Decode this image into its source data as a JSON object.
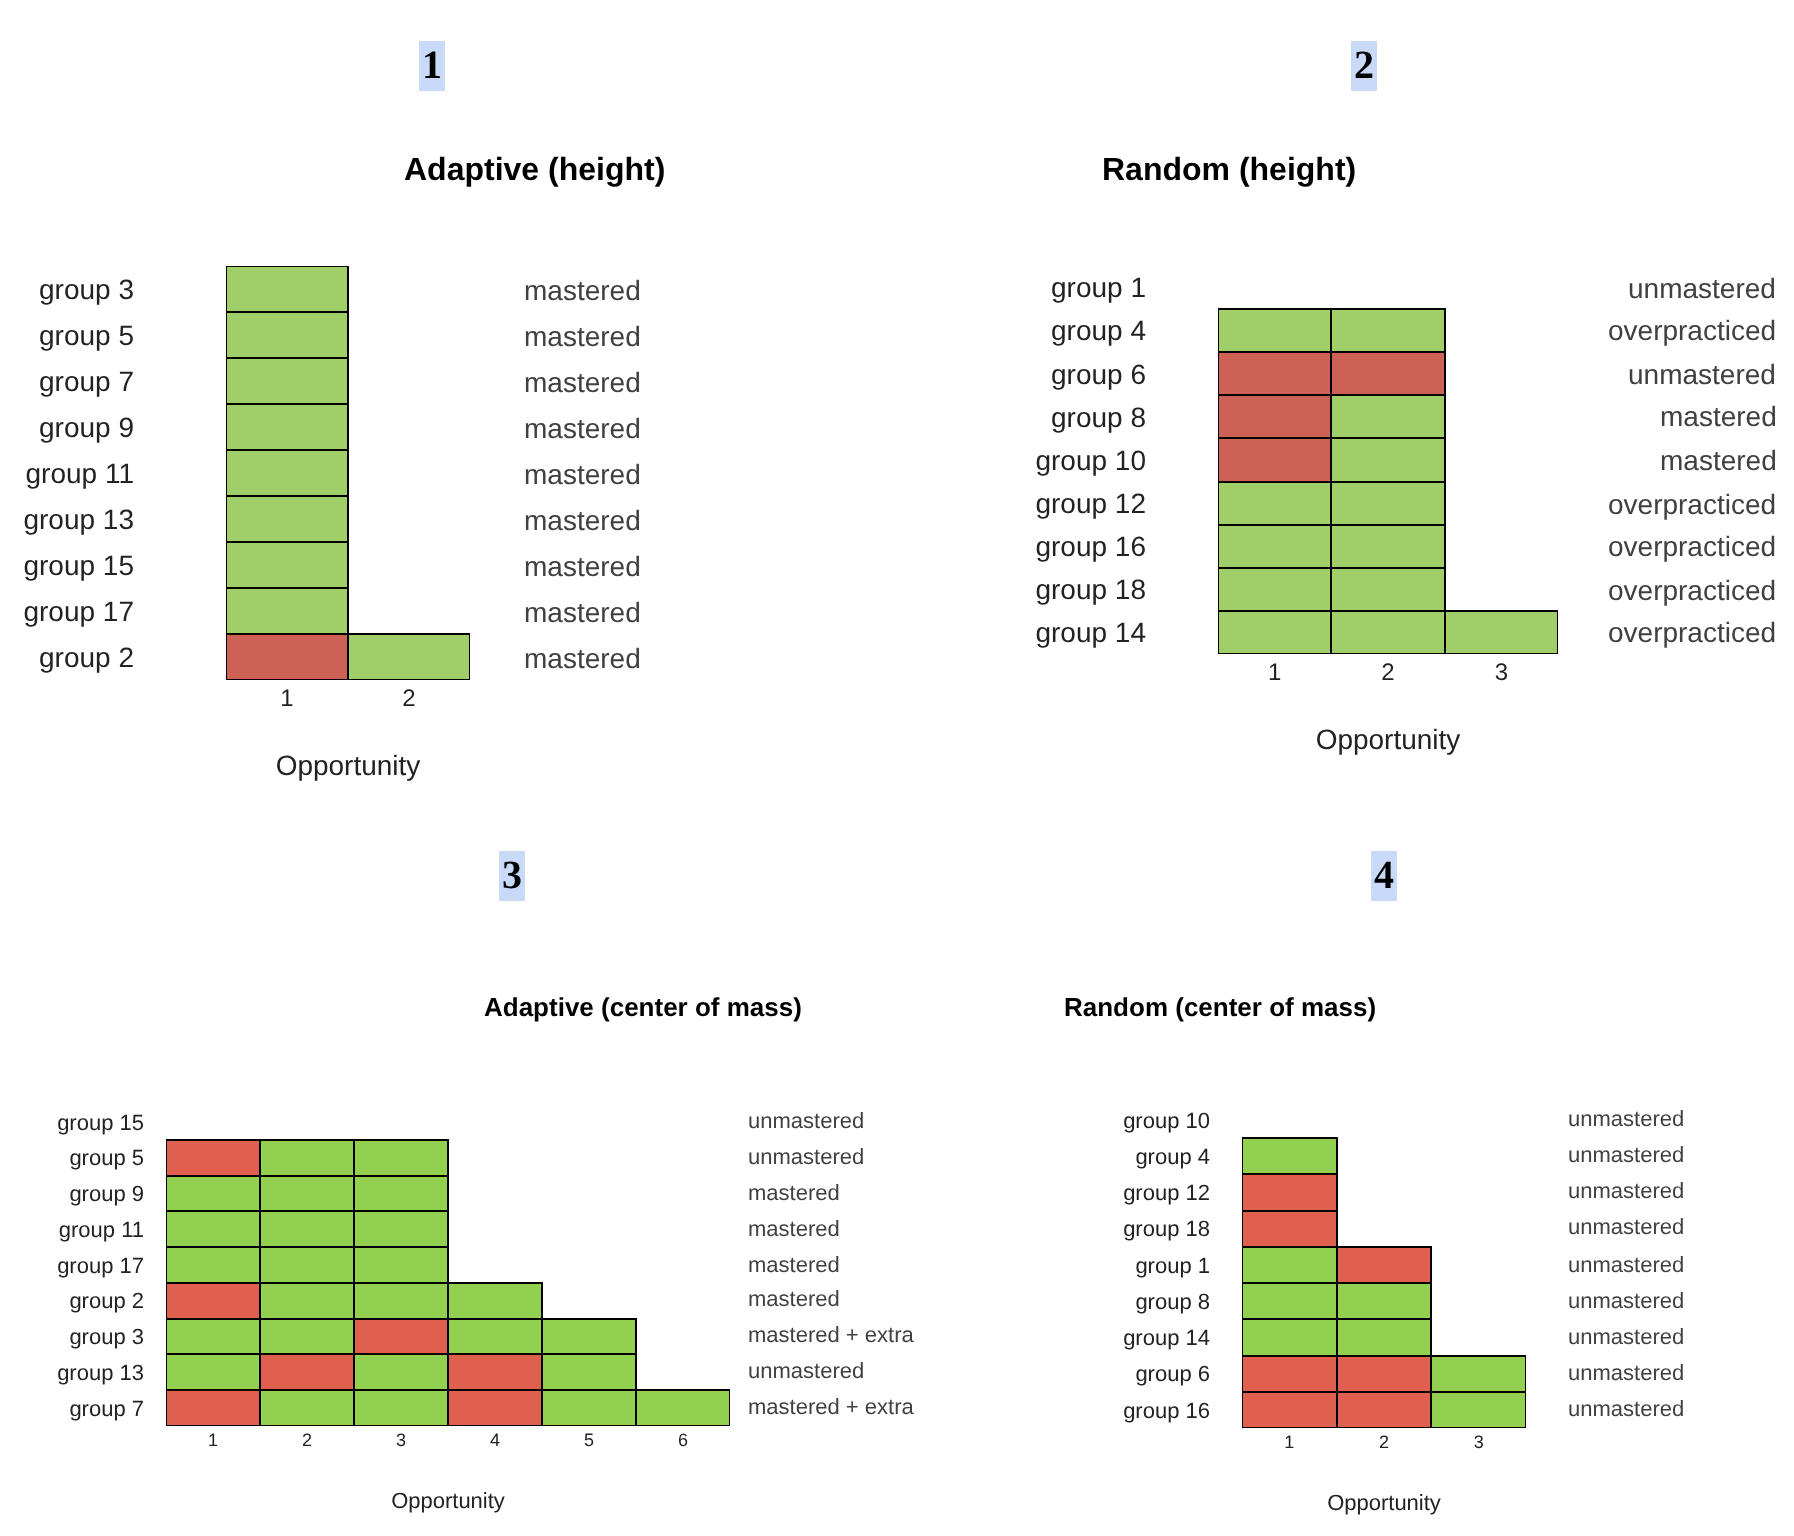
{
  "chart_data": [
    {
      "type": "bar",
      "orientation": "horizontal",
      "stacked": true,
      "annotations": [
        "1"
      ],
      "title": "Adaptive (height)",
      "xlabel": "Opportunity",
      "categories": [
        "group 3",
        "group 5",
        "group 7",
        "group 9",
        "group 11",
        "group 13",
        "group 15",
        "group 17",
        "group 2"
      ],
      "y2_categories": [
        "mastered",
        "mastered",
        "mastered",
        "mastered",
        "mastered",
        "mastered",
        "mastered",
        "mastered",
        "mastered"
      ],
      "xlim": [
        0,
        2
      ],
      "xticks": [
        {
          "value": 0.5,
          "label": "1"
        },
        {
          "value": 1.5,
          "label": "2"
        }
      ],
      "series": [
        {
          "values": [
            1,
            1,
            1,
            1,
            1,
            1,
            1,
            1,
            1
          ],
          "colors": [
            "#a0cf6a",
            "#a0cf6a",
            "#a0cf6a",
            "#a0cf6a",
            "#a0cf6a",
            "#a0cf6a",
            "#a0cf6a",
            "#a0cf6a",
            "#cd6155"
          ]
        },
        {
          "values": [
            null,
            null,
            null,
            null,
            null,
            null,
            null,
            null,
            1
          ],
          "colors": [
            null,
            null,
            null,
            null,
            null,
            null,
            null,
            null,
            "#a0cf6a"
          ]
        }
      ]
    },
    {
      "type": "bar",
      "orientation": "horizontal",
      "stacked": true,
      "annotations": [
        "2"
      ],
      "title": "Random (height)",
      "xlabel": "Opportunity",
      "categories": [
        "group 1",
        "group 4",
        "group 6",
        "group 8",
        "group 10",
        "group 12",
        "group 16",
        "group 18",
        "group 14"
      ],
      "y2_categories": [
        "unmastered",
        "overpracticed",
        "unmastered",
        "mastered",
        "mastered",
        "overpracticed",
        "overpracticed",
        "overpracticed",
        "overpracticed"
      ],
      "xlim": [
        0,
        3
      ],
      "xticks": [
        {
          "value": 0.5,
          "label": "1"
        },
        {
          "value": 1.5,
          "label": "2"
        },
        {
          "value": 2.5,
          "label": "3"
        }
      ],
      "series": [
        {
          "values": [
            null,
            1,
            1,
            1,
            1,
            1,
            1,
            1,
            1
          ],
          "colors": [
            null,
            "#a0cf6a",
            "#cd6155",
            "#cd6155",
            "#cd6155",
            "#a0cf6a",
            "#a0cf6a",
            "#a0cf6a",
            "#a0cf6a"
          ]
        },
        {
          "values": [
            null,
            1,
            1,
            1,
            1,
            1,
            1,
            1,
            1
          ],
          "colors": [
            null,
            "#a0cf6a",
            "#cd6155",
            "#a0cf6a",
            "#a0cf6a",
            "#a0cf6a",
            "#a0cf6a",
            "#a0cf6a",
            "#a0cf6a"
          ]
        },
        {
          "values": [
            null,
            null,
            null,
            null,
            null,
            null,
            null,
            null,
            1
          ],
          "colors": [
            null,
            null,
            null,
            null,
            null,
            null,
            null,
            null,
            "#a0cf6a"
          ]
        }
      ]
    },
    {
      "type": "bar",
      "orientation": "horizontal",
      "stacked": true,
      "annotations": [
        "3"
      ],
      "title": "Adaptive (center of mass)",
      "xlabel": "Opportunity",
      "categories": [
        "group 15",
        "group 5",
        "group 9",
        "group 11",
        "group 17",
        "group 2",
        "group 3",
        "group 13",
        "group 7"
      ],
      "y2_categories": [
        "unmastered",
        "unmastered",
        "mastered",
        "mastered",
        "mastered",
        "mastered",
        "mastered + extra",
        "unmastered",
        "mastered + extra"
      ],
      "xlim": [
        0,
        6
      ],
      "xticks": [
        {
          "value": 0.5,
          "label": "1"
        },
        {
          "value": 1.5,
          "label": "2"
        },
        {
          "value": 2.5,
          "label": "3"
        },
        {
          "value": 3.5,
          "label": "4"
        },
        {
          "value": 4.5,
          "label": "5"
        },
        {
          "value": 5.5,
          "label": "6"
        }
      ],
      "series": [
        {
          "values": [
            null,
            1,
            1,
            1,
            1,
            1,
            1,
            1,
            1
          ],
          "colors": [
            null,
            "#e06050",
            "#92d050",
            "#92d050",
            "#92d050",
            "#e06050",
            "#92d050",
            "#92d050",
            "#e06050"
          ]
        },
        {
          "values": [
            null,
            1,
            1,
            1,
            1,
            1,
            1,
            1,
            1
          ],
          "colors": [
            null,
            "#92d050",
            "#92d050",
            "#92d050",
            "#92d050",
            "#92d050",
            "#92d050",
            "#e06050",
            "#92d050"
          ]
        },
        {
          "values": [
            null,
            1,
            1,
            1,
            1,
            1,
            1,
            1,
            1
          ],
          "colors": [
            null,
            "#92d050",
            "#92d050",
            "#92d050",
            "#92d050",
            "#92d050",
            "#e06050",
            "#92d050",
            "#92d050"
          ]
        },
        {
          "values": [
            null,
            null,
            null,
            null,
            null,
            1,
            1,
            1,
            1
          ],
          "colors": [
            null,
            null,
            null,
            null,
            null,
            "#92d050",
            "#92d050",
            "#e06050",
            "#e06050"
          ]
        },
        {
          "values": [
            null,
            null,
            null,
            null,
            null,
            null,
            1,
            1,
            1
          ],
          "colors": [
            null,
            null,
            null,
            null,
            null,
            null,
            "#92d050",
            "#92d050",
            "#92d050"
          ]
        },
        {
          "values": [
            null,
            null,
            null,
            null,
            null,
            null,
            null,
            null,
            1
          ],
          "colors": [
            null,
            null,
            null,
            null,
            null,
            null,
            null,
            null,
            "#92d050"
          ]
        }
      ]
    },
    {
      "type": "bar",
      "orientation": "horizontal",
      "stacked": true,
      "annotations": [
        "4"
      ],
      "title": "Random (center of mass)",
      "xlabel": "Opportunity",
      "categories": [
        "group 10",
        "group 4",
        "group 12",
        "group 18",
        "group 1",
        "group 8",
        "group 14",
        "group 6",
        "group 16"
      ],
      "y2_categories": [
        "unmastered",
        "unmastered",
        "unmastered",
        "unmastered",
        "unmastered",
        "unmastered",
        "unmastered",
        "unmastered",
        "unmastered"
      ],
      "xlim": [
        0,
        3
      ],
      "xticks": [
        {
          "value": 0.5,
          "label": "1"
        },
        {
          "value": 1.5,
          "label": "2"
        },
        {
          "value": 2.5,
          "label": "3"
        }
      ],
      "series": [
        {
          "values": [
            null,
            1,
            1,
            1,
            1,
            1,
            1,
            1,
            1
          ],
          "colors": [
            null,
            "#92d050",
            "#e06050",
            "#e06050",
            "#92d050",
            "#92d050",
            "#92d050",
            "#e06050",
            "#e06050"
          ]
        },
        {
          "values": [
            null,
            null,
            null,
            null,
            1,
            1,
            1,
            1,
            1
          ],
          "colors": [
            null,
            null,
            null,
            null,
            "#e06050",
            "#92d050",
            "#92d050",
            "#e06050",
            "#e06050"
          ]
        },
        {
          "values": [
            null,
            null,
            null,
            null,
            null,
            null,
            null,
            1,
            1
          ],
          "colors": [
            null,
            null,
            null,
            null,
            null,
            null,
            null,
            "#92d050",
            "#92d050"
          ]
        }
      ]
    }
  ]
}
